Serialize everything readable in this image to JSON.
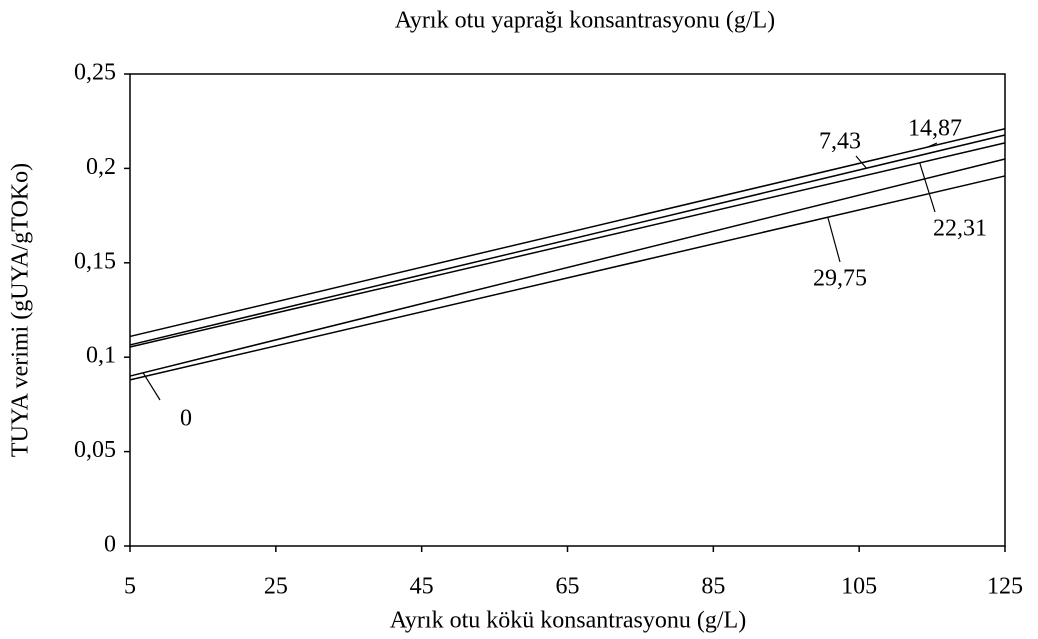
{
  "chart_data": {
    "type": "line",
    "legend_title": "Ayrık otu yaprağı konsantrasyonu (g/L)",
    "x_label": "Ayrık otu kökü konsantrasyonu (g/L)",
    "y_label": "TUYA verimi (gUYA/gTOKo)",
    "x": [
      5,
      125
    ],
    "series": [
      {
        "name": "0",
        "color": "#000000",
        "values": [
          0.09,
          0.205
        ]
      },
      {
        "name": "7,43",
        "color": "#000000",
        "values": [
          0.1065,
          0.2177
        ]
      },
      {
        "name": "14,87",
        "color": "#000000",
        "values": [
          0.111,
          0.221
        ]
      },
      {
        "name": "22,31",
        "color": "#000000",
        "values": [
          0.1054,
          0.2135
        ]
      },
      {
        "name": "29,75",
        "color": "#000000",
        "values": [
          0.088,
          0.196
        ]
      }
    ],
    "xlim": [
      5,
      125
    ],
    "xticks": [
      5,
      25,
      45,
      65,
      85,
      105,
      125
    ],
    "ylim": [
      0,
      0.25
    ],
    "yticks": [
      0,
      {
        "value": 0.05,
        "label": "0,05"
      },
      {
        "value": 0.1,
        "label": "0,1"
      },
      {
        "value": 0.15,
        "label": "0,15"
      },
      {
        "value": 0.2,
        "label": "0,2"
      },
      {
        "value": 0.25,
        "label": "0,25"
      }
    ],
    "grid": false
  }
}
